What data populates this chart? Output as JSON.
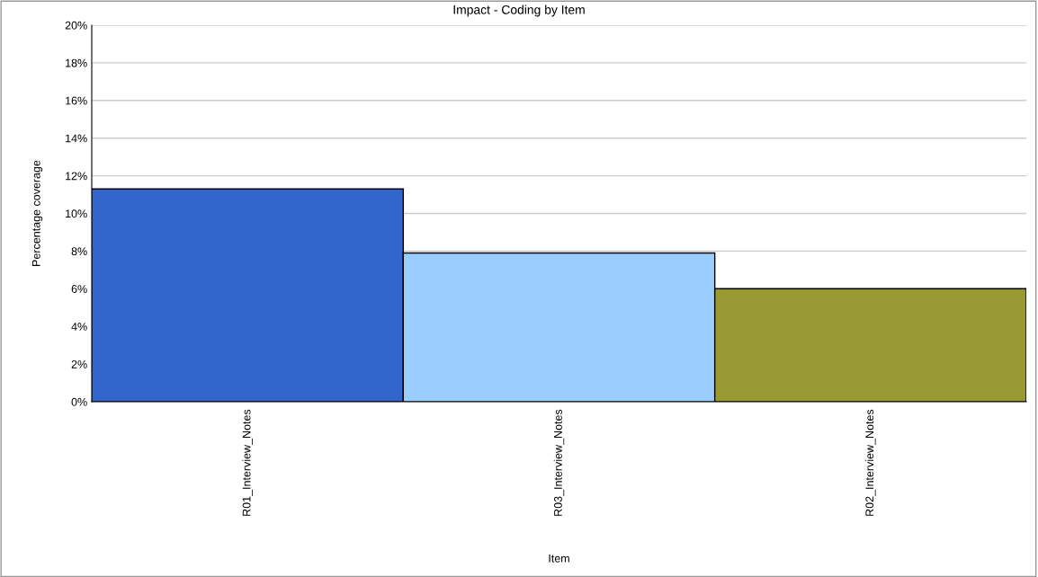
{
  "chart_data": {
    "type": "bar",
    "title": "Impact - Coding by Item",
    "xlabel": "Item",
    "ylabel": "Percentage coverage",
    "categories": [
      "R01_Interview_Notes",
      "R03_Interview_Notes",
      "R02_Interview_Notes"
    ],
    "values": [
      11.3,
      7.9,
      6.0
    ],
    "colors": [
      "#3366cc",
      "#99ccff",
      "#999933"
    ],
    "ylim": [
      0,
      20
    ],
    "yticks": [
      {
        "value": 0,
        "label": "0%"
      },
      {
        "value": 2,
        "label": "2%"
      },
      {
        "value": 4,
        "label": "4%"
      },
      {
        "value": 6,
        "label": "6%"
      },
      {
        "value": 8,
        "label": "8%"
      },
      {
        "value": 10,
        "label": "10%"
      },
      {
        "value": 12,
        "label": "12%"
      },
      {
        "value": 14,
        "label": "14%"
      },
      {
        "value": 16,
        "label": "16%"
      },
      {
        "value": 18,
        "label": "18%"
      },
      {
        "value": 20,
        "label": "20%"
      }
    ],
    "grid": "y",
    "legend": false
  }
}
